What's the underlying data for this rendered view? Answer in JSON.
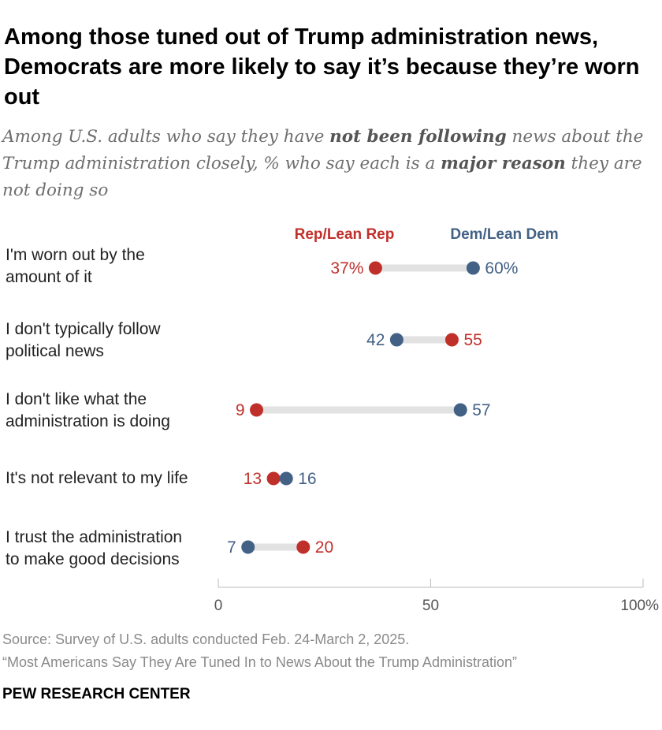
{
  "title": "Among those tuned out of Trump administration news, Democrats are more likely to say it’s because they’re worn out",
  "subtitle": {
    "p1": "Among U.S. adults who say they have ",
    "b1": "not been following",
    "p2": " news about the Trump administration closely, % who say each is a ",
    "b2": "major reason",
    "p3": " they are not doing so"
  },
  "colors": {
    "rep": "#c0302b",
    "dem": "#436185",
    "track": "#e2e2e2",
    "axis": "#bbbbbb"
  },
  "chart_data": {
    "type": "dot",
    "xlim": [
      0,
      100
    ],
    "ticks": [
      {
        "value": 0,
        "label": "0"
      },
      {
        "value": 50,
        "label": "50"
      },
      {
        "value": 100,
        "label": "100%"
      }
    ],
    "series": [
      {
        "key": "rep",
        "name": "Rep/Lean Rep"
      },
      {
        "key": "dem",
        "name": "Dem/Lean Dem"
      }
    ],
    "categories": [
      {
        "label": "I'm worn out by the\namount of it",
        "rep": 37,
        "dem": 60,
        "rep_label": "37%",
        "dem_label": "60%"
      },
      {
        "label": "I don't typically follow\npolitical news",
        "rep": 55,
        "dem": 42,
        "rep_label": "55",
        "dem_label": "42"
      },
      {
        "label": "I don't like what the\nadministration is doing",
        "rep": 9,
        "dem": 57,
        "rep_label": "9",
        "dem_label": "57"
      },
      {
        "label": "It's not relevant to my life",
        "rep": 13,
        "dem": 16,
        "rep_label": "13",
        "dem_label": "16"
      },
      {
        "label": "I trust the administration\nto make good decisions",
        "rep": 20,
        "dem": 7,
        "rep_label": "20",
        "dem_label": "7"
      }
    ]
  },
  "source": "Source: Survey of U.S. adults conducted Feb. 24-March 2, 2025.",
  "note": "“Most Americans Say They Are Tuned In to News About the Trump Administration”",
  "brand": "PEW RESEARCH CENTER"
}
